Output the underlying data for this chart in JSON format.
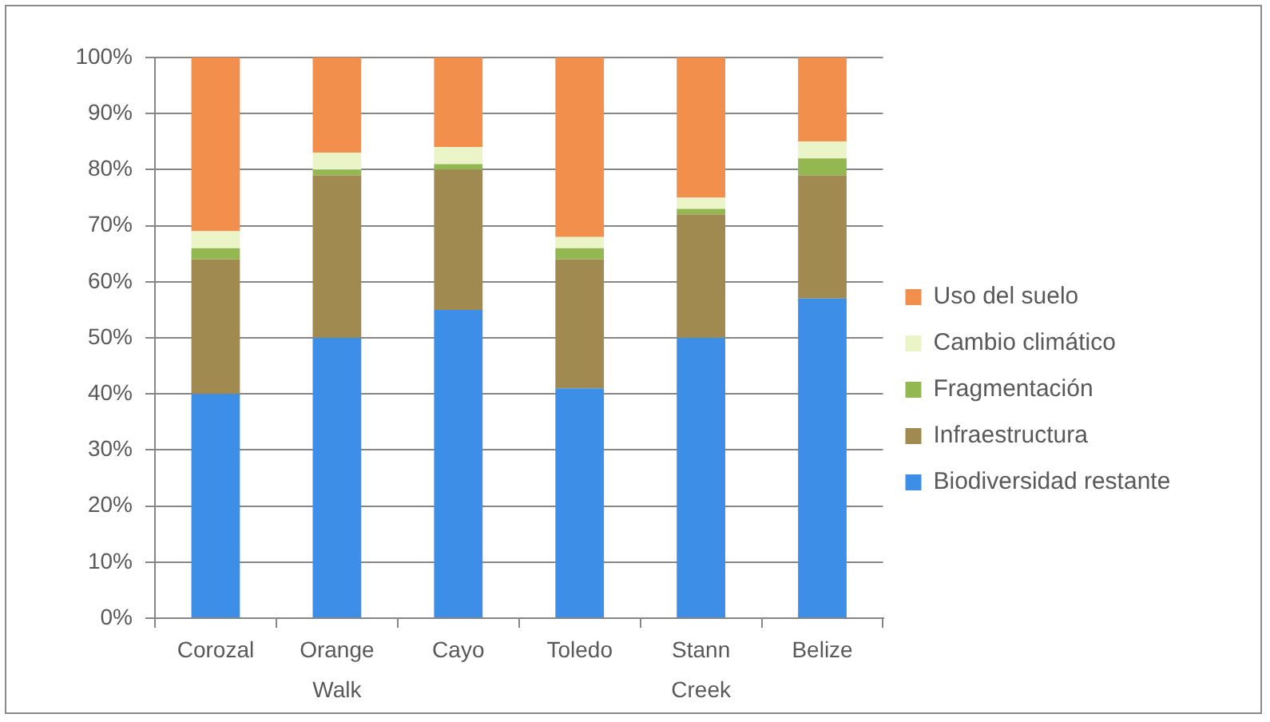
{
  "chart_data": {
    "type": "bar",
    "stacked": true,
    "categories": [
      "Corozal",
      "Orange Walk",
      "Cayo",
      "Toledo",
      "Stann Creek",
      "Belize"
    ],
    "series": [
      {
        "name": "Biodiversidad restante",
        "color": "#3d8ee6",
        "values": [
          40,
          50,
          55,
          41,
          50,
          57
        ]
      },
      {
        "name": "Infraestructura",
        "color": "#a08a4f",
        "values": [
          24,
          29,
          25,
          23,
          22,
          22
        ]
      },
      {
        "name": "Fragmentación",
        "color": "#93b852",
        "values": [
          2,
          1,
          1,
          2,
          1,
          3
        ]
      },
      {
        "name": "Cambio climático",
        "color": "#eaf4c6",
        "values": [
          3,
          3,
          3,
          2,
          2,
          3
        ]
      },
      {
        "name": "Uso del suelo",
        "color": "#f28f4c",
        "values": [
          31,
          17,
          16,
          32,
          25,
          15
        ]
      }
    ],
    "ylim": [
      0,
      100
    ],
    "yticks": [
      {
        "value": 0,
        "label": "0%"
      },
      {
        "value": 10,
        "label": "10%"
      },
      {
        "value": 20,
        "label": "20%"
      },
      {
        "value": 30,
        "label": "30%"
      },
      {
        "value": 40,
        "label": "40%"
      },
      {
        "value": 50,
        "label": "50%"
      },
      {
        "value": 60,
        "label": "60%"
      },
      {
        "value": 70,
        "label": "70%"
      },
      {
        "value": 80,
        "label": "80%"
      },
      {
        "value": 90,
        "label": "90%"
      },
      {
        "value": 100,
        "label": "100%"
      }
    ],
    "grid": "y",
    "legend": "right"
  }
}
